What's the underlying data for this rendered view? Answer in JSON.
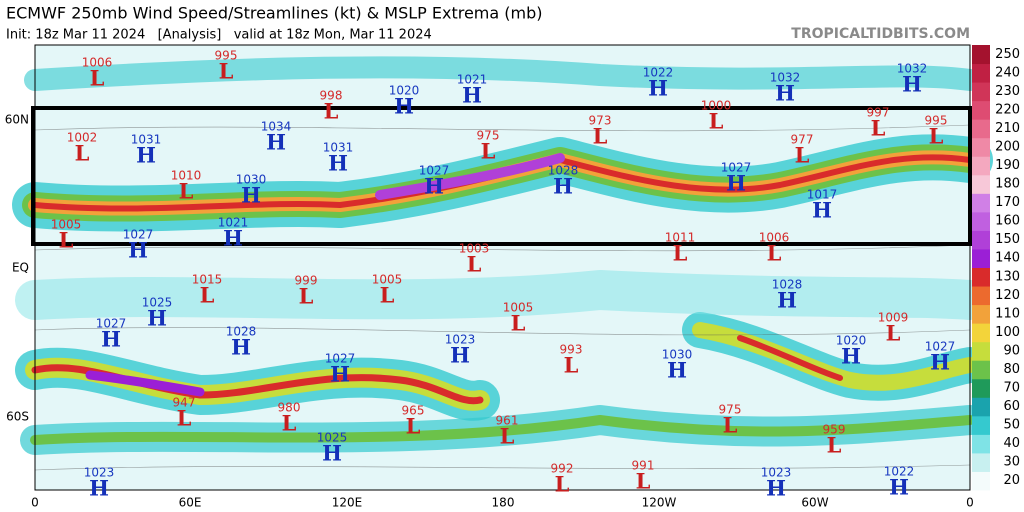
{
  "header": {
    "title": "ECMWF 250mb Wind Speed/Streamlines (kt) & MSLP Extrema (mb)",
    "subtitle": "Init: 18z Mar 11 2024   [Analysis]   valid at 18z Mon, Mar 11 2024",
    "brand": "TROPICALTIDBITS.COM"
  },
  "axes": {
    "lon_labels": [
      "0",
      "60E",
      "120E",
      "180",
      "120W",
      "60W",
      "0"
    ],
    "lat_labels": [
      "60N",
      "EQ",
      "60S"
    ]
  },
  "colorbar": {
    "ticks": [
      20,
      30,
      40,
      50,
      60,
      70,
      80,
      90,
      100,
      110,
      120,
      130,
      140,
      150,
      160,
      170,
      180,
      190,
      200,
      210,
      220,
      230,
      240,
      250
    ],
    "colors": [
      "#f4fbfb",
      "#c8f0f0",
      "#7fe3e6",
      "#35c9cf",
      "#1aa3ad",
      "#1f9a5a",
      "#6cc24a",
      "#c6dd3c",
      "#f3d43a",
      "#f2a23a",
      "#ec6a2e",
      "#d92b2b",
      "#9b1fd6",
      "#b040d8",
      "#c060e0",
      "#d080e6",
      "#f7c8d8",
      "#f4a8bf",
      "#ef89a6",
      "#e86a8c",
      "#de4c72",
      "#d03558",
      "#c02043",
      "#a4122e"
    ]
  },
  "centers": [
    {
      "type": "L",
      "pressure": 1006
    },
    {
      "type": "L",
      "pressure": 995
    },
    {
      "type": "L",
      "pressure": 998
    },
    {
      "type": "H",
      "pressure": 1020
    },
    {
      "type": "H",
      "pressure": 1021
    },
    {
      "type": "H",
      "pressure": 1022
    },
    {
      "type": "H",
      "pressure": 1032
    },
    {
      "type": "H",
      "pressure": 1032
    },
    {
      "type": "L",
      "pressure": 1000
    },
    {
      "type": "L",
      "pressure": 997
    },
    {
      "type": "L",
      "pressure": 995
    },
    {
      "type": "L",
      "pressure": 1002
    },
    {
      "type": "H",
      "pressure": 1031
    },
    {
      "type": "H",
      "pressure": 1034
    },
    {
      "type": "H",
      "pressure": 1031
    },
    {
      "type": "L",
      "pressure": 975
    },
    {
      "type": "L",
      "pressure": 973
    },
    {
      "type": "L",
      "pressure": 977
    },
    {
      "type": "L",
      "pressure": 1010
    },
    {
      "type": "H",
      "pressure": 1030
    },
    {
      "type": "H",
      "pressure": 1027
    },
    {
      "type": "H",
      "pressure": 1028
    },
    {
      "type": "H",
      "pressure": 1027
    },
    {
      "type": "H",
      "pressure": 1017
    },
    {
      "type": "L",
      "pressure": 1005
    },
    {
      "type": "H",
      "pressure": 1027
    },
    {
      "type": "H",
      "pressure": 1021
    },
    {
      "type": "L",
      "pressure": 1003
    },
    {
      "type": "L",
      "pressure": 1011
    },
    {
      "type": "L",
      "pressure": 1006
    },
    {
      "type": "L",
      "pressure": 1015
    },
    {
      "type": "L",
      "pressure": 999
    },
    {
      "type": "L",
      "pressure": 1005
    },
    {
      "type": "H",
      "pressure": 1025
    },
    {
      "type": "L",
      "pressure": 1005
    },
    {
      "type": "H",
      "pressure": 1028
    },
    {
      "type": "H",
      "pressure": 1027
    },
    {
      "type": "H",
      "pressure": 1028
    },
    {
      "type": "H",
      "pressure": 1023
    },
    {
      "type": "L",
      "pressure": 993
    },
    {
      "type": "H",
      "pressure": 1030
    },
    {
      "type": "L",
      "pressure": 1009
    },
    {
      "type": "H",
      "pressure": 1020
    },
    {
      "type": "H",
      "pressure": 1027
    },
    {
      "type": "H",
      "pressure": 1027
    },
    {
      "type": "L",
      "pressure": 947
    },
    {
      "type": "L",
      "pressure": 980
    },
    {
      "type": "L",
      "pressure": 965
    },
    {
      "type": "L",
      "pressure": 961
    },
    {
      "type": "L",
      "pressure": 975
    },
    {
      "type": "L",
      "pressure": 959
    },
    {
      "type": "H",
      "pressure": 1025
    },
    {
      "type": "L",
      "pressure": 992
    },
    {
      "type": "L",
      "pressure": 991
    },
    {
      "type": "H",
      "pressure": 1023
    },
    {
      "type": "H",
      "pressure": 1023
    },
    {
      "type": "H",
      "pressure": 1022
    }
  ]
}
